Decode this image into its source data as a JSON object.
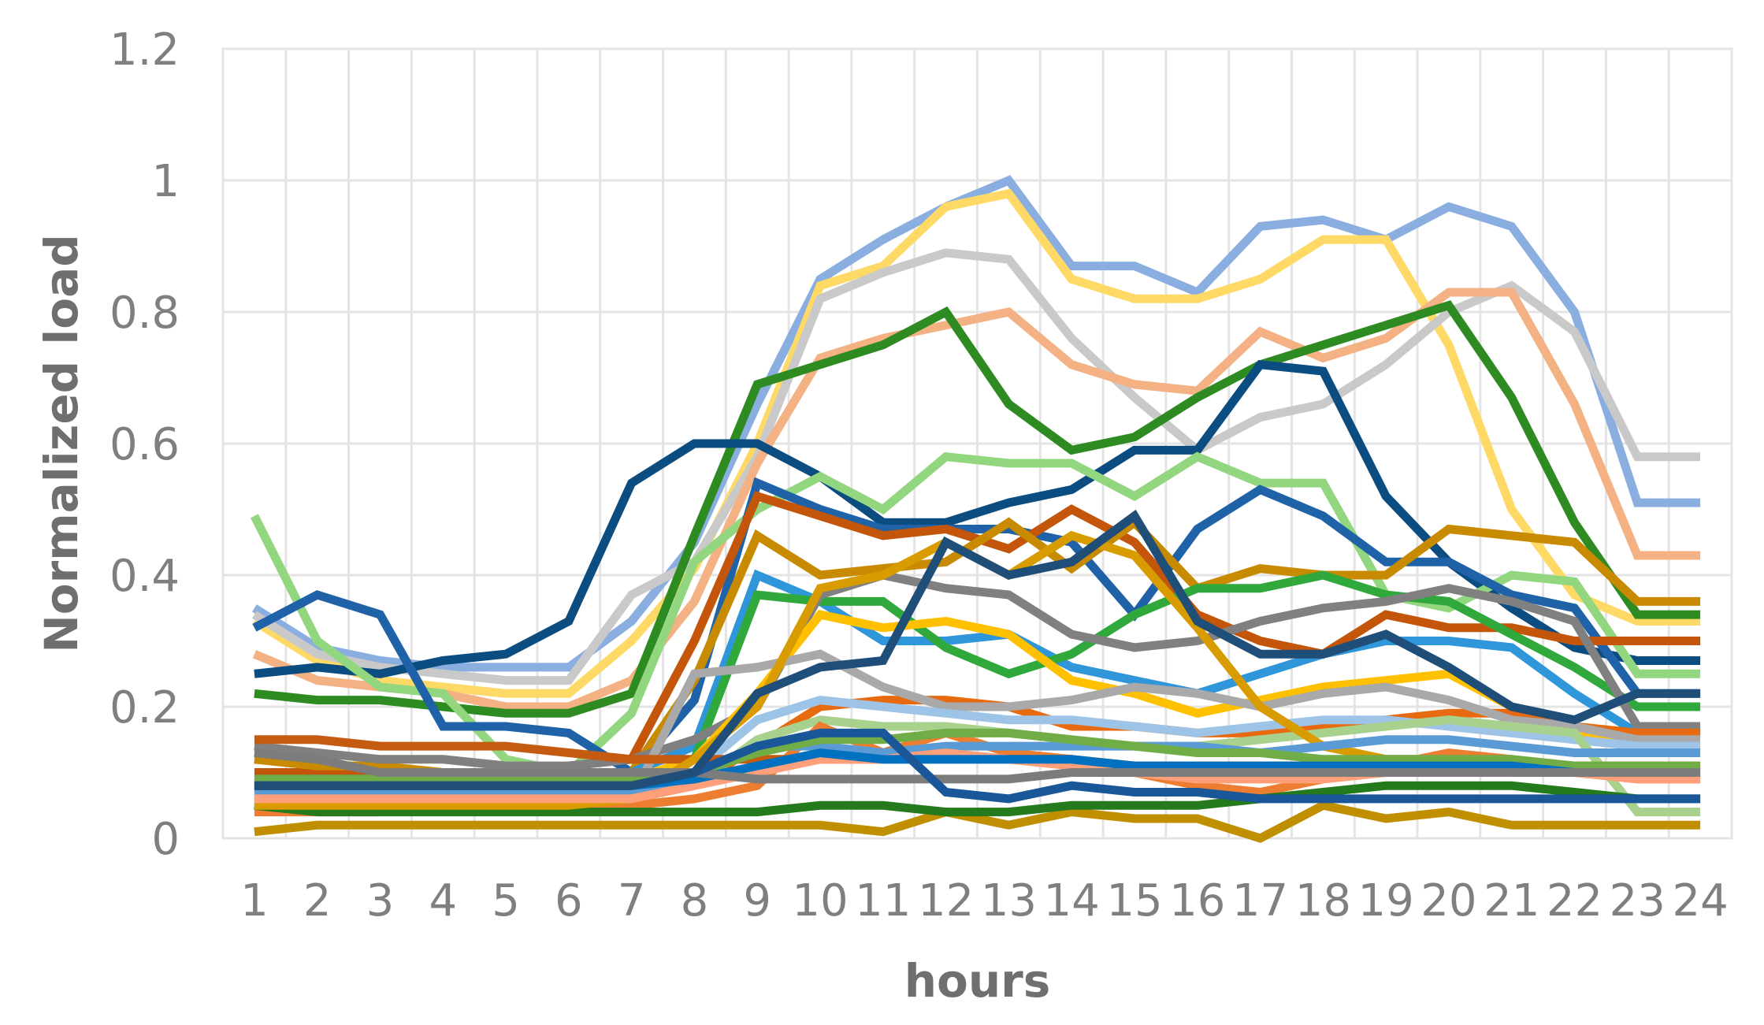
{
  "chart_data": {
    "type": "line",
    "title": "",
    "xlabel": "hours",
    "ylabel": "Normalized load",
    "x": [
      1,
      2,
      3,
      4,
      5,
      6,
      7,
      8,
      9,
      10,
      11,
      12,
      13,
      14,
      15,
      16,
      17,
      18,
      19,
      20,
      21,
      22,
      23,
      24
    ],
    "x_tick_labels": [
      "1",
      "2",
      "3",
      "4",
      "5",
      "6",
      "7",
      "8",
      "9",
      "10",
      "11",
      "12",
      "13",
      "14",
      "15",
      "16",
      "17",
      "18",
      "19",
      "20",
      "21",
      "22",
      "23",
      "24"
    ],
    "y_tick_labels": [
      "0",
      "0.2",
      "0.4",
      "0.6",
      "0.8",
      "1",
      "1.2"
    ],
    "y_ticks": [
      0,
      0.2,
      0.4,
      0.6,
      0.8,
      1.0,
      1.2
    ],
    "ylim": [
      0,
      1.2
    ],
    "grid": true,
    "legend": "none",
    "series": [
      {
        "color": "#8aaee0",
        "values": [
          0.35,
          0.29,
          0.27,
          0.26,
          0.26,
          0.26,
          0.33,
          0.45,
          0.66,
          0.85,
          0.91,
          0.96,
          1.0,
          0.87,
          0.87,
          0.83,
          0.93,
          0.94,
          0.91,
          0.96,
          0.93,
          0.8,
          0.51,
          0.51
        ]
      },
      {
        "color": "#ffd966",
        "values": [
          0.33,
          0.27,
          0.24,
          0.23,
          0.22,
          0.22,
          0.3,
          0.41,
          0.6,
          0.84,
          0.87,
          0.96,
          0.98,
          0.85,
          0.82,
          0.82,
          0.85,
          0.91,
          0.91,
          0.75,
          0.5,
          0.37,
          0.33,
          0.33
        ]
      },
      {
        "color": "#c9c9c9",
        "values": [
          0.34,
          0.28,
          0.26,
          0.25,
          0.24,
          0.24,
          0.37,
          0.42,
          0.58,
          0.82,
          0.86,
          0.89,
          0.88,
          0.76,
          0.67,
          0.59,
          0.64,
          0.66,
          0.72,
          0.8,
          0.84,
          0.77,
          0.58,
          0.58
        ]
      },
      {
        "color": "#f4b183",
        "values": [
          0.28,
          0.24,
          0.23,
          0.22,
          0.2,
          0.2,
          0.24,
          0.36,
          0.57,
          0.73,
          0.76,
          0.78,
          0.8,
          0.72,
          0.69,
          0.68,
          0.77,
          0.73,
          0.76,
          0.83,
          0.83,
          0.66,
          0.43,
          0.43
        ]
      },
      {
        "color": "#2e8b22",
        "values": [
          0.22,
          0.21,
          0.21,
          0.2,
          0.19,
          0.19,
          0.22,
          0.46,
          0.69,
          0.72,
          0.75,
          0.8,
          0.66,
          0.59,
          0.61,
          0.67,
          0.72,
          0.75,
          0.78,
          0.81,
          0.67,
          0.48,
          0.34,
          0.34
        ]
      },
      {
        "color": "#0b4d80",
        "values": [
          0.25,
          0.26,
          0.25,
          0.27,
          0.28,
          0.33,
          0.54,
          0.6,
          0.6,
          0.55,
          0.48,
          0.48,
          0.51,
          0.53,
          0.59,
          0.59,
          0.72,
          0.71,
          0.52,
          0.42,
          0.35,
          0.29,
          0.27,
          0.27
        ]
      },
      {
        "color": "#92d67f",
        "values": [
          0.49,
          0.3,
          0.23,
          0.22,
          0.12,
          0.1,
          0.19,
          0.42,
          0.5,
          0.55,
          0.5,
          0.58,
          0.57,
          0.57,
          0.52,
          0.58,
          0.54,
          0.54,
          0.37,
          0.35,
          0.4,
          0.39,
          0.25,
          0.25
        ]
      },
      {
        "color": "#1f62a8",
        "values": [
          0.32,
          0.37,
          0.34,
          0.17,
          0.17,
          0.16,
          0.1,
          0.21,
          0.54,
          0.5,
          0.47,
          0.47,
          0.47,
          0.45,
          0.34,
          0.47,
          0.53,
          0.49,
          0.42,
          0.42,
          0.37,
          0.35,
          0.22,
          0.22
        ]
      },
      {
        "color": "#c3560a",
        "values": [
          0.1,
          0.1,
          0.1,
          0.1,
          0.1,
          0.11,
          0.12,
          0.3,
          0.52,
          0.49,
          0.46,
          0.47,
          0.44,
          0.5,
          0.45,
          0.34,
          0.3,
          0.28,
          0.34,
          0.32,
          0.32,
          0.3,
          0.3,
          0.3
        ]
      },
      {
        "color": "#c78a00",
        "values": [
          0.12,
          0.11,
          0.11,
          0.1,
          0.1,
          0.09,
          0.1,
          0.24,
          0.46,
          0.4,
          0.41,
          0.42,
          0.48,
          0.41,
          0.48,
          0.38,
          0.41,
          0.4,
          0.4,
          0.47,
          0.46,
          0.45,
          0.36,
          0.36
        ]
      },
      {
        "color": "#2f96d9",
        "values": [
          0.09,
          0.09,
          0.09,
          0.09,
          0.09,
          0.09,
          0.1,
          0.14,
          0.4,
          0.36,
          0.3,
          0.3,
          0.31,
          0.26,
          0.24,
          0.22,
          0.25,
          0.28,
          0.3,
          0.3,
          0.29,
          0.22,
          0.16,
          0.16
        ]
      },
      {
        "color": "#31a83b",
        "values": [
          0.06,
          0.06,
          0.06,
          0.06,
          0.06,
          0.06,
          0.07,
          0.12,
          0.37,
          0.36,
          0.36,
          0.29,
          0.25,
          0.28,
          0.34,
          0.38,
          0.38,
          0.4,
          0.37,
          0.36,
          0.31,
          0.26,
          0.2,
          0.2
        ]
      },
      {
        "color": "#808080",
        "values": [
          0.14,
          0.13,
          0.12,
          0.12,
          0.11,
          0.11,
          0.12,
          0.15,
          0.2,
          0.37,
          0.4,
          0.38,
          0.37,
          0.31,
          0.29,
          0.3,
          0.33,
          0.35,
          0.36,
          0.38,
          0.36,
          0.33,
          0.17,
          0.17
        ]
      },
      {
        "color": "#ffc000",
        "values": [
          0.08,
          0.08,
          0.08,
          0.08,
          0.08,
          0.08,
          0.09,
          0.12,
          0.22,
          0.34,
          0.32,
          0.33,
          0.31,
          0.24,
          0.22,
          0.19,
          0.21,
          0.23,
          0.24,
          0.25,
          0.2,
          0.16,
          0.14,
          0.14
        ]
      },
      {
        "color": "#e86a10",
        "values": [
          0.06,
          0.06,
          0.06,
          0.06,
          0.06,
          0.06,
          0.06,
          0.08,
          0.14,
          0.2,
          0.21,
          0.21,
          0.2,
          0.17,
          0.17,
          0.16,
          0.16,
          0.17,
          0.18,
          0.19,
          0.19,
          0.17,
          0.16,
          0.16
        ]
      },
      {
        "color": "#a9a9a9",
        "values": [
          0.05,
          0.05,
          0.05,
          0.05,
          0.05,
          0.05,
          0.06,
          0.25,
          0.26,
          0.28,
          0.23,
          0.2,
          0.2,
          0.21,
          0.23,
          0.22,
          0.2,
          0.22,
          0.23,
          0.21,
          0.18,
          0.17,
          0.15,
          0.15
        ]
      },
      {
        "color": "#9dc3e6",
        "values": [
          0.07,
          0.07,
          0.07,
          0.07,
          0.07,
          0.07,
          0.08,
          0.1,
          0.18,
          0.21,
          0.2,
          0.19,
          0.18,
          0.18,
          0.17,
          0.16,
          0.17,
          0.18,
          0.18,
          0.17,
          0.16,
          0.15,
          0.14,
          0.14
        ]
      },
      {
        "color": "#a9d18e",
        "values": [
          0.05,
          0.05,
          0.05,
          0.05,
          0.05,
          0.05,
          0.06,
          0.08,
          0.15,
          0.18,
          0.17,
          0.17,
          0.16,
          0.15,
          0.14,
          0.14,
          0.15,
          0.16,
          0.17,
          0.18,
          0.17,
          0.16,
          0.04,
          0.04
        ]
      },
      {
        "color": "#ed7d31",
        "values": [
          0.04,
          0.04,
          0.04,
          0.05,
          0.05,
          0.05,
          0.05,
          0.06,
          0.08,
          0.17,
          0.13,
          0.16,
          0.13,
          0.12,
          0.1,
          0.08,
          0.07,
          0.09,
          0.11,
          0.13,
          0.12,
          0.1,
          0.09,
          0.09
        ]
      },
      {
        "color": "#bf8f00",
        "values": [
          0.01,
          0.02,
          0.02,
          0.02,
          0.02,
          0.02,
          0.02,
          0.02,
          0.02,
          0.02,
          0.01,
          0.04,
          0.02,
          0.04,
          0.03,
          0.03,
          0.0,
          0.05,
          0.03,
          0.04,
          0.02,
          0.02,
          0.02,
          0.02
        ]
      },
      {
        "color": "#267a1e",
        "values": [
          0.05,
          0.04,
          0.04,
          0.04,
          0.04,
          0.04,
          0.04,
          0.04,
          0.04,
          0.05,
          0.05,
          0.04,
          0.04,
          0.05,
          0.05,
          0.05,
          0.06,
          0.07,
          0.08,
          0.08,
          0.08,
          0.07,
          0.06,
          0.06
        ]
      },
      {
        "color": "#c55a11",
        "values": [
          0.15,
          0.15,
          0.14,
          0.14,
          0.14,
          0.13,
          0.12,
          0.12,
          0.12,
          0.12,
          0.12,
          0.12,
          0.12,
          0.12,
          0.11,
          0.11,
          0.11,
          0.11,
          0.11,
          0.11,
          0.11,
          0.11,
          0.11,
          0.11
        ]
      },
      {
        "color": "#d89c00",
        "values": [
          0.05,
          0.05,
          0.05,
          0.05,
          0.05,
          0.05,
          0.06,
          0.12,
          0.2,
          0.38,
          0.4,
          0.45,
          0.4,
          0.46,
          0.43,
          0.32,
          0.2,
          0.14,
          0.12,
          0.12,
          0.11,
          0.11,
          0.11,
          0.11
        ]
      },
      {
        "color": "#5b9bd5",
        "values": [
          0.07,
          0.07,
          0.07,
          0.07,
          0.07,
          0.07,
          0.07,
          0.09,
          0.14,
          0.14,
          0.13,
          0.14,
          0.14,
          0.14,
          0.14,
          0.14,
          0.13,
          0.14,
          0.15,
          0.15,
          0.14,
          0.13,
          0.13,
          0.13
        ]
      },
      {
        "color": "#70ad47",
        "values": [
          0.09,
          0.09,
          0.09,
          0.09,
          0.09,
          0.09,
          0.09,
          0.1,
          0.13,
          0.15,
          0.15,
          0.16,
          0.16,
          0.15,
          0.14,
          0.13,
          0.13,
          0.12,
          0.12,
          0.12,
          0.12,
          0.11,
          0.11,
          0.11
        ]
      },
      {
        "color": "#ffa07a",
        "values": [
          0.06,
          0.06,
          0.06,
          0.06,
          0.06,
          0.06,
          0.06,
          0.08,
          0.1,
          0.12,
          0.12,
          0.13,
          0.12,
          0.11,
          0.1,
          0.09,
          0.09,
          0.09,
          0.1,
          0.1,
          0.1,
          0.1,
          0.09,
          0.09
        ]
      },
      {
        "color": "#0070c0",
        "values": [
          0.08,
          0.08,
          0.08,
          0.08,
          0.08,
          0.08,
          0.08,
          0.09,
          0.11,
          0.13,
          0.12,
          0.12,
          0.12,
          0.12,
          0.11,
          0.11,
          0.11,
          0.11,
          0.11,
          0.11,
          0.11,
          0.1,
          0.1,
          0.1
        ]
      },
      {
        "color": "#7c7c7c",
        "values": [
          0.13,
          0.12,
          0.1,
          0.1,
          0.1,
          0.1,
          0.1,
          0.1,
          0.09,
          0.09,
          0.09,
          0.09,
          0.09,
          0.1,
          0.1,
          0.1,
          0.1,
          0.1,
          0.1,
          0.1,
          0.1,
          0.1,
          0.1,
          0.1
        ]
      },
      {
        "color": "#1a5799",
        "values": [
          0.08,
          0.08,
          0.08,
          0.08,
          0.08,
          0.08,
          0.08,
          0.1,
          0.14,
          0.16,
          0.16,
          0.07,
          0.06,
          0.08,
          0.07,
          0.07,
          0.06,
          0.06,
          0.06,
          0.06,
          0.06,
          0.06,
          0.06,
          0.06
        ]
      },
      {
        "color": "#1f4e79",
        "values": [
          0.08,
          0.08,
          0.08,
          0.08,
          0.08,
          0.08,
          0.08,
          0.1,
          0.22,
          0.26,
          0.27,
          0.45,
          0.4,
          0.42,
          0.49,
          0.33,
          0.28,
          0.28,
          0.31,
          0.26,
          0.2,
          0.18,
          0.22,
          0.22
        ]
      }
    ]
  }
}
